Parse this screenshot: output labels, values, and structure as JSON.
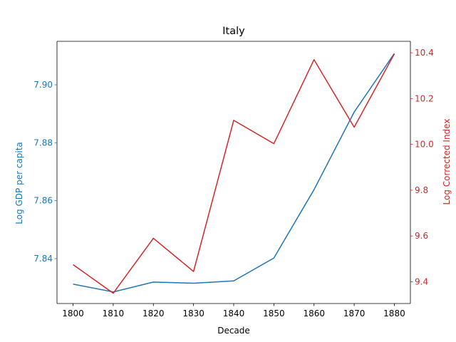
{
  "chart_data": {
    "type": "line",
    "title": "Italy",
    "xlabel": "Decade",
    "ylabel_left": "Log GDP per capita",
    "ylabel_right": "Log Corrected Index",
    "x": [
      1800,
      1810,
      1820,
      1830,
      1840,
      1850,
      1860,
      1870,
      1880
    ],
    "x_ticks": [
      "1800",
      "1810",
      "1820",
      "1830",
      "1840",
      "1850",
      "1860",
      "1870",
      "1880"
    ],
    "y_left_ticks": [
      "7.84",
      "7.86",
      "7.88",
      "7.90"
    ],
    "y_right_ticks": [
      "9.4",
      "9.6",
      "9.8",
      "10.0",
      "10.2",
      "10.4"
    ],
    "xlim": [
      1796,
      1884
    ],
    "ylim_left": [
      7.8245,
      7.915
    ],
    "ylim_right": [
      9.305,
      10.45
    ],
    "grid": false,
    "series": [
      {
        "axis": "left",
        "color": "#1f77b4",
        "values": [
          7.8312,
          7.8285,
          7.8319,
          7.8315,
          7.8323,
          7.8402,
          7.8638,
          7.8906,
          7.9108
        ]
      },
      {
        "axis": "right",
        "color": "#d62728",
        "values": [
          9.475,
          9.35,
          9.59,
          9.445,
          10.105,
          10.003,
          10.37,
          10.075,
          10.395
        ]
      }
    ]
  }
}
